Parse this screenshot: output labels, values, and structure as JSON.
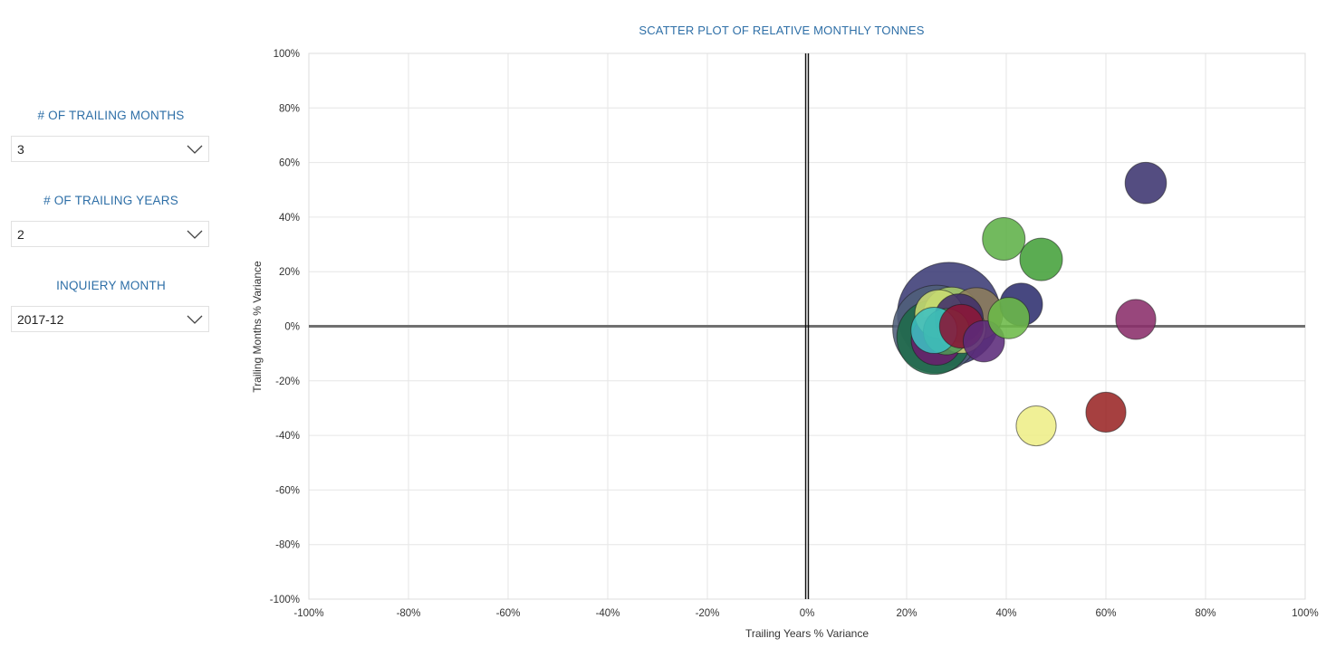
{
  "filters": {
    "trailing_months": {
      "label": "# OF TRAILING MONTHS",
      "value": "3"
    },
    "trailing_years": {
      "label": "# OF TRAILING YEARS",
      "value": "2"
    },
    "inquiry_month": {
      "label": "INQUIERY MONTH",
      "value": "2017-12"
    }
  },
  "chart_data": {
    "type": "scatter",
    "title": "SCATTER PLOT OF RELATIVE MONTHLY TONNES",
    "xlabel": "Trailing Years % Variance",
    "ylabel": "Trailing Months % Variance",
    "xlim": [
      -100,
      100
    ],
    "ylim": [
      -100,
      100
    ],
    "x_ticks": [
      "-100%",
      "-80%",
      "-60%",
      "-40%",
      "-20%",
      "0%",
      "20%",
      "40%",
      "60%",
      "80%",
      "100%"
    ],
    "y_ticks": [
      "100%",
      "80%",
      "60%",
      "40%",
      "20%",
      "0%",
      "-20%",
      "-40%",
      "-60%",
      "-80%",
      "-100%"
    ],
    "grid": true,
    "bubble_size_unit": "relative",
    "points": [
      {
        "x": 28.5,
        "y": 4.5,
        "size": 100,
        "color": "#3b3b75"
      },
      {
        "x": 26,
        "y": -1,
        "size": 72,
        "color": "#4f5f7a"
      },
      {
        "x": 25.5,
        "y": -4,
        "size": 52,
        "color": "#1f6b4a"
      },
      {
        "x": 29,
        "y": 4,
        "size": 30,
        "color": "#a9cc6a"
      },
      {
        "x": 26.5,
        "y": 4.5,
        "size": 22,
        "color": "#c9dc72"
      },
      {
        "x": 34,
        "y": 4.5,
        "size": 26,
        "color": "#8d7d5c"
      },
      {
        "x": 31,
        "y": -1,
        "size": 22,
        "color": "#d3d47a"
      },
      {
        "x": 28,
        "y": -2,
        "size": 20,
        "color": "#4f9a55"
      },
      {
        "x": 26,
        "y": -5,
        "size": 24,
        "color": "#6b1e6d"
      },
      {
        "x": 30.5,
        "y": 3,
        "size": 22,
        "color": "#402d6a"
      },
      {
        "x": 31,
        "y": 0,
        "size": 18,
        "color": "#8a1437"
      },
      {
        "x": 25.5,
        "y": -1.5,
        "size": 20,
        "color": "#3cbfc0"
      },
      {
        "x": 35.5,
        "y": -5.5,
        "size": 16,
        "color": "#5b2a7a"
      },
      {
        "x": 43,
        "y": 8,
        "size": 17,
        "color": "#2e2f6e"
      },
      {
        "x": 40.5,
        "y": 3,
        "size": 16,
        "color": "#6cba48"
      },
      {
        "x": 39.5,
        "y": 32,
        "size": 17,
        "color": "#5fb048"
      },
      {
        "x": 47,
        "y": 24.5,
        "size": 17,
        "color": "#44a03a"
      },
      {
        "x": 68,
        "y": 52.5,
        "size": 16,
        "color": "#3c3470"
      },
      {
        "x": 66,
        "y": 2.5,
        "size": 15,
        "color": "#8a2e6a"
      },
      {
        "x": 60,
        "y": -31.5,
        "size": 15,
        "color": "#9a2626"
      },
      {
        "x": 46,
        "y": -36.5,
        "size": 15,
        "color": "#eeee88"
      }
    ]
  }
}
